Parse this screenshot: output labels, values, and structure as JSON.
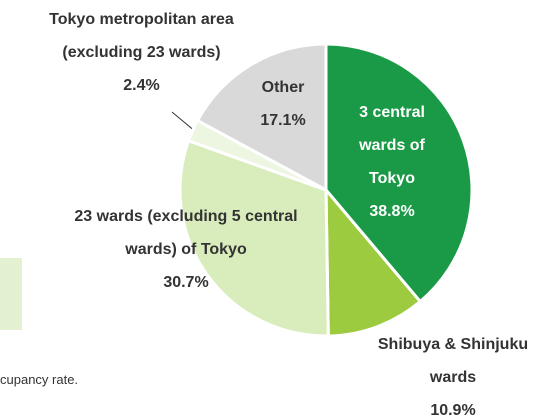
{
  "chart_data": {
    "type": "pie",
    "categories": [
      "3 central wards of Tokyo",
      "Shibuya & Shinjuku wards",
      "23 wards (excluding 5 central wards) of Tokyo",
      "Tokyo metropolitan area (excluding 23 wards)",
      "Other"
    ],
    "values": [
      38.8,
      10.9,
      30.7,
      2.4,
      17.1
    ],
    "value_labels": [
      "38.8%",
      "10.9%",
      "30.7%",
      "2.4%",
      "17.1%"
    ],
    "colors": [
      "#1a9a46",
      "#9dcb3f",
      "#d9ecbc",
      "#edf6e1",
      "#d9d9d9"
    ],
    "footnote": "cupancy rate."
  }
}
